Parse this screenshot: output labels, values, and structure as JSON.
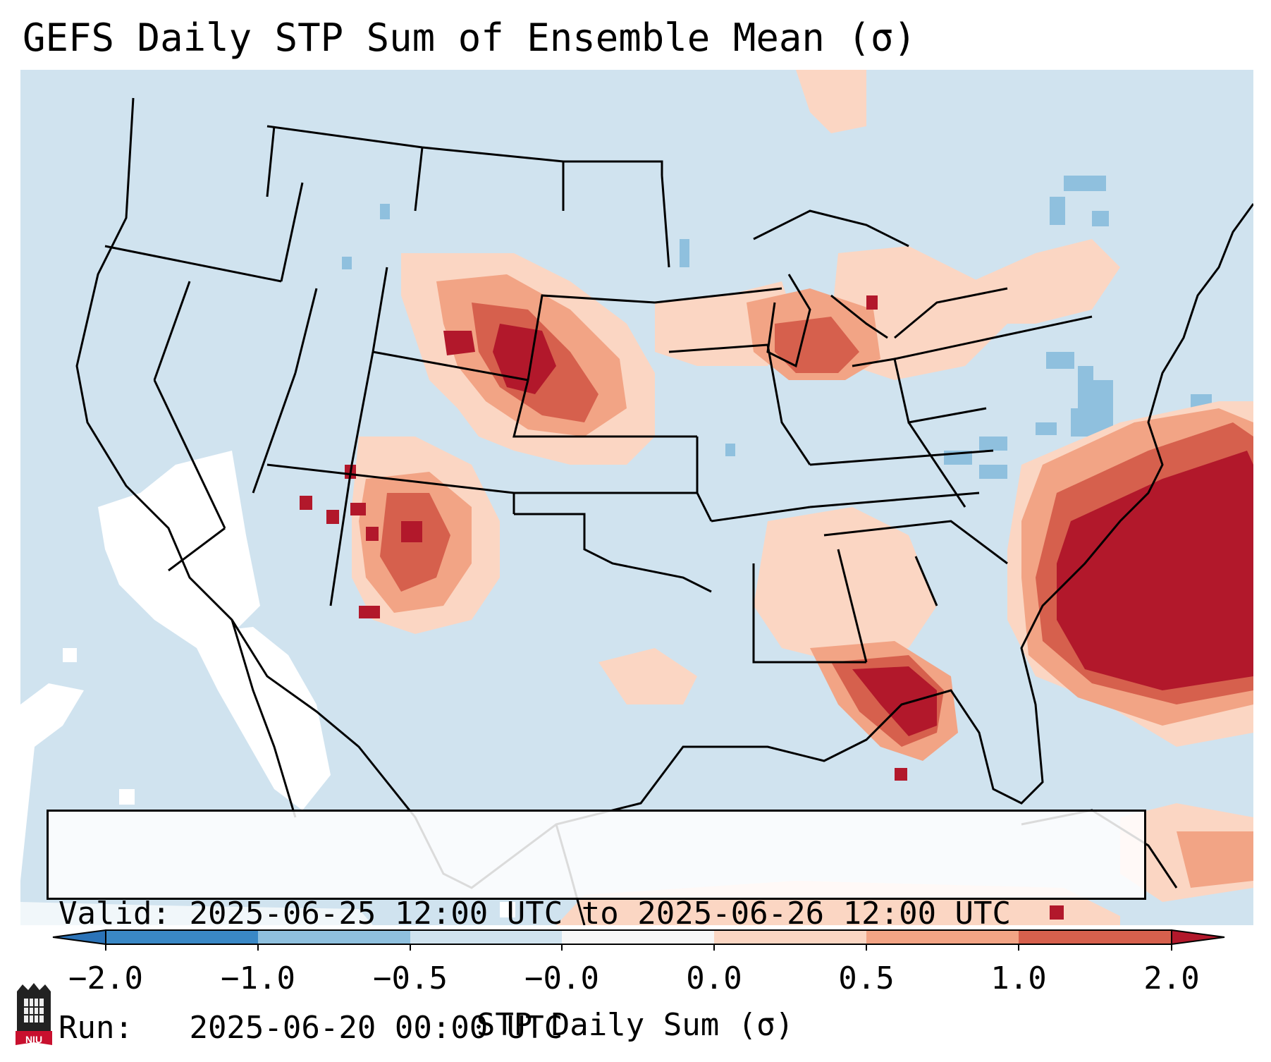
{
  "title": "GEFS Daily STP Sum of Ensemble Mean (σ)",
  "info": {
    "valid_label": "Valid:",
    "valid_text": "2025-06-25 12:00 UTC to 2025-06-26 12:00 UTC",
    "run_label": "Run:",
    "run_text": "2025-06-20 00:00 UTC"
  },
  "colorbar": {
    "label": "STP Daily Sum (σ)",
    "ticks": [
      "−2.0",
      "−1.0",
      "−0.5",
      "−0.0",
      "0.0",
      "0.5",
      "1.0",
      "2.0"
    ],
    "bins": [
      {
        "range": "< -2.0",
        "color": "#2b73b8"
      },
      {
        "range": "-2.0 to -1.0",
        "color": "#3a88c6"
      },
      {
        "range": "-1.0 to -0.5",
        "color": "#8fc0de"
      },
      {
        "range": "-0.5 to -0.0",
        "color": "#d0e3ef"
      },
      {
        "range": "-0.0 to 0.0",
        "color": "#f7f7f7"
      },
      {
        "range": "0.0 to 0.5",
        "color": "#fbd6c3"
      },
      {
        "range": "0.5 to 1.0",
        "color": "#f2a485"
      },
      {
        "range": "1.0 to 2.0",
        "color": "#d6604d"
      },
      {
        "range": "> 2.0",
        "color": "#b2182b"
      }
    ]
  },
  "map": {
    "background_color": "#d0e3ef",
    "outline_color": "#000000",
    "regions": [
      {
        "name": "great-plains-high",
        "value": 2.0
      },
      {
        "name": "new-mexico-cluster",
        "value": 1.5
      },
      {
        "name": "great-lakes-michigan",
        "value": 1.0
      },
      {
        "name": "florida-panhandle",
        "value": 2.0
      },
      {
        "name": "western-atlantic",
        "value": 2.0
      },
      {
        "name": "pacific-coast",
        "value": 0.0
      }
    ]
  },
  "logo": {
    "text": "NIU",
    "color": "#c8102e"
  }
}
